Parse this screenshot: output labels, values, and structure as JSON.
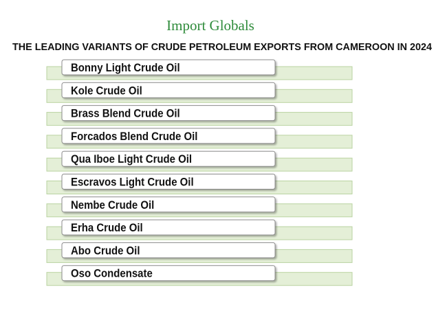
{
  "logo": "Import Globals",
  "title": "THE LEADING VARIANTS OF CRUDE PETROLEUM EXPORTS FROM CAMEROON IN 2024",
  "items": [
    "Bonny Light Crude Oil",
    "Kole Crude Oil",
    "Brass Blend Crude Oil",
    "Forcados Blend Crude Oil",
    "Qua Iboe Light Crude Oil",
    "Escravos Light Crude Oil",
    "Nembe Crude Oil",
    "Erha Crude Oil",
    "Abo Crude Oil",
    "Oso Condensate"
  ]
}
